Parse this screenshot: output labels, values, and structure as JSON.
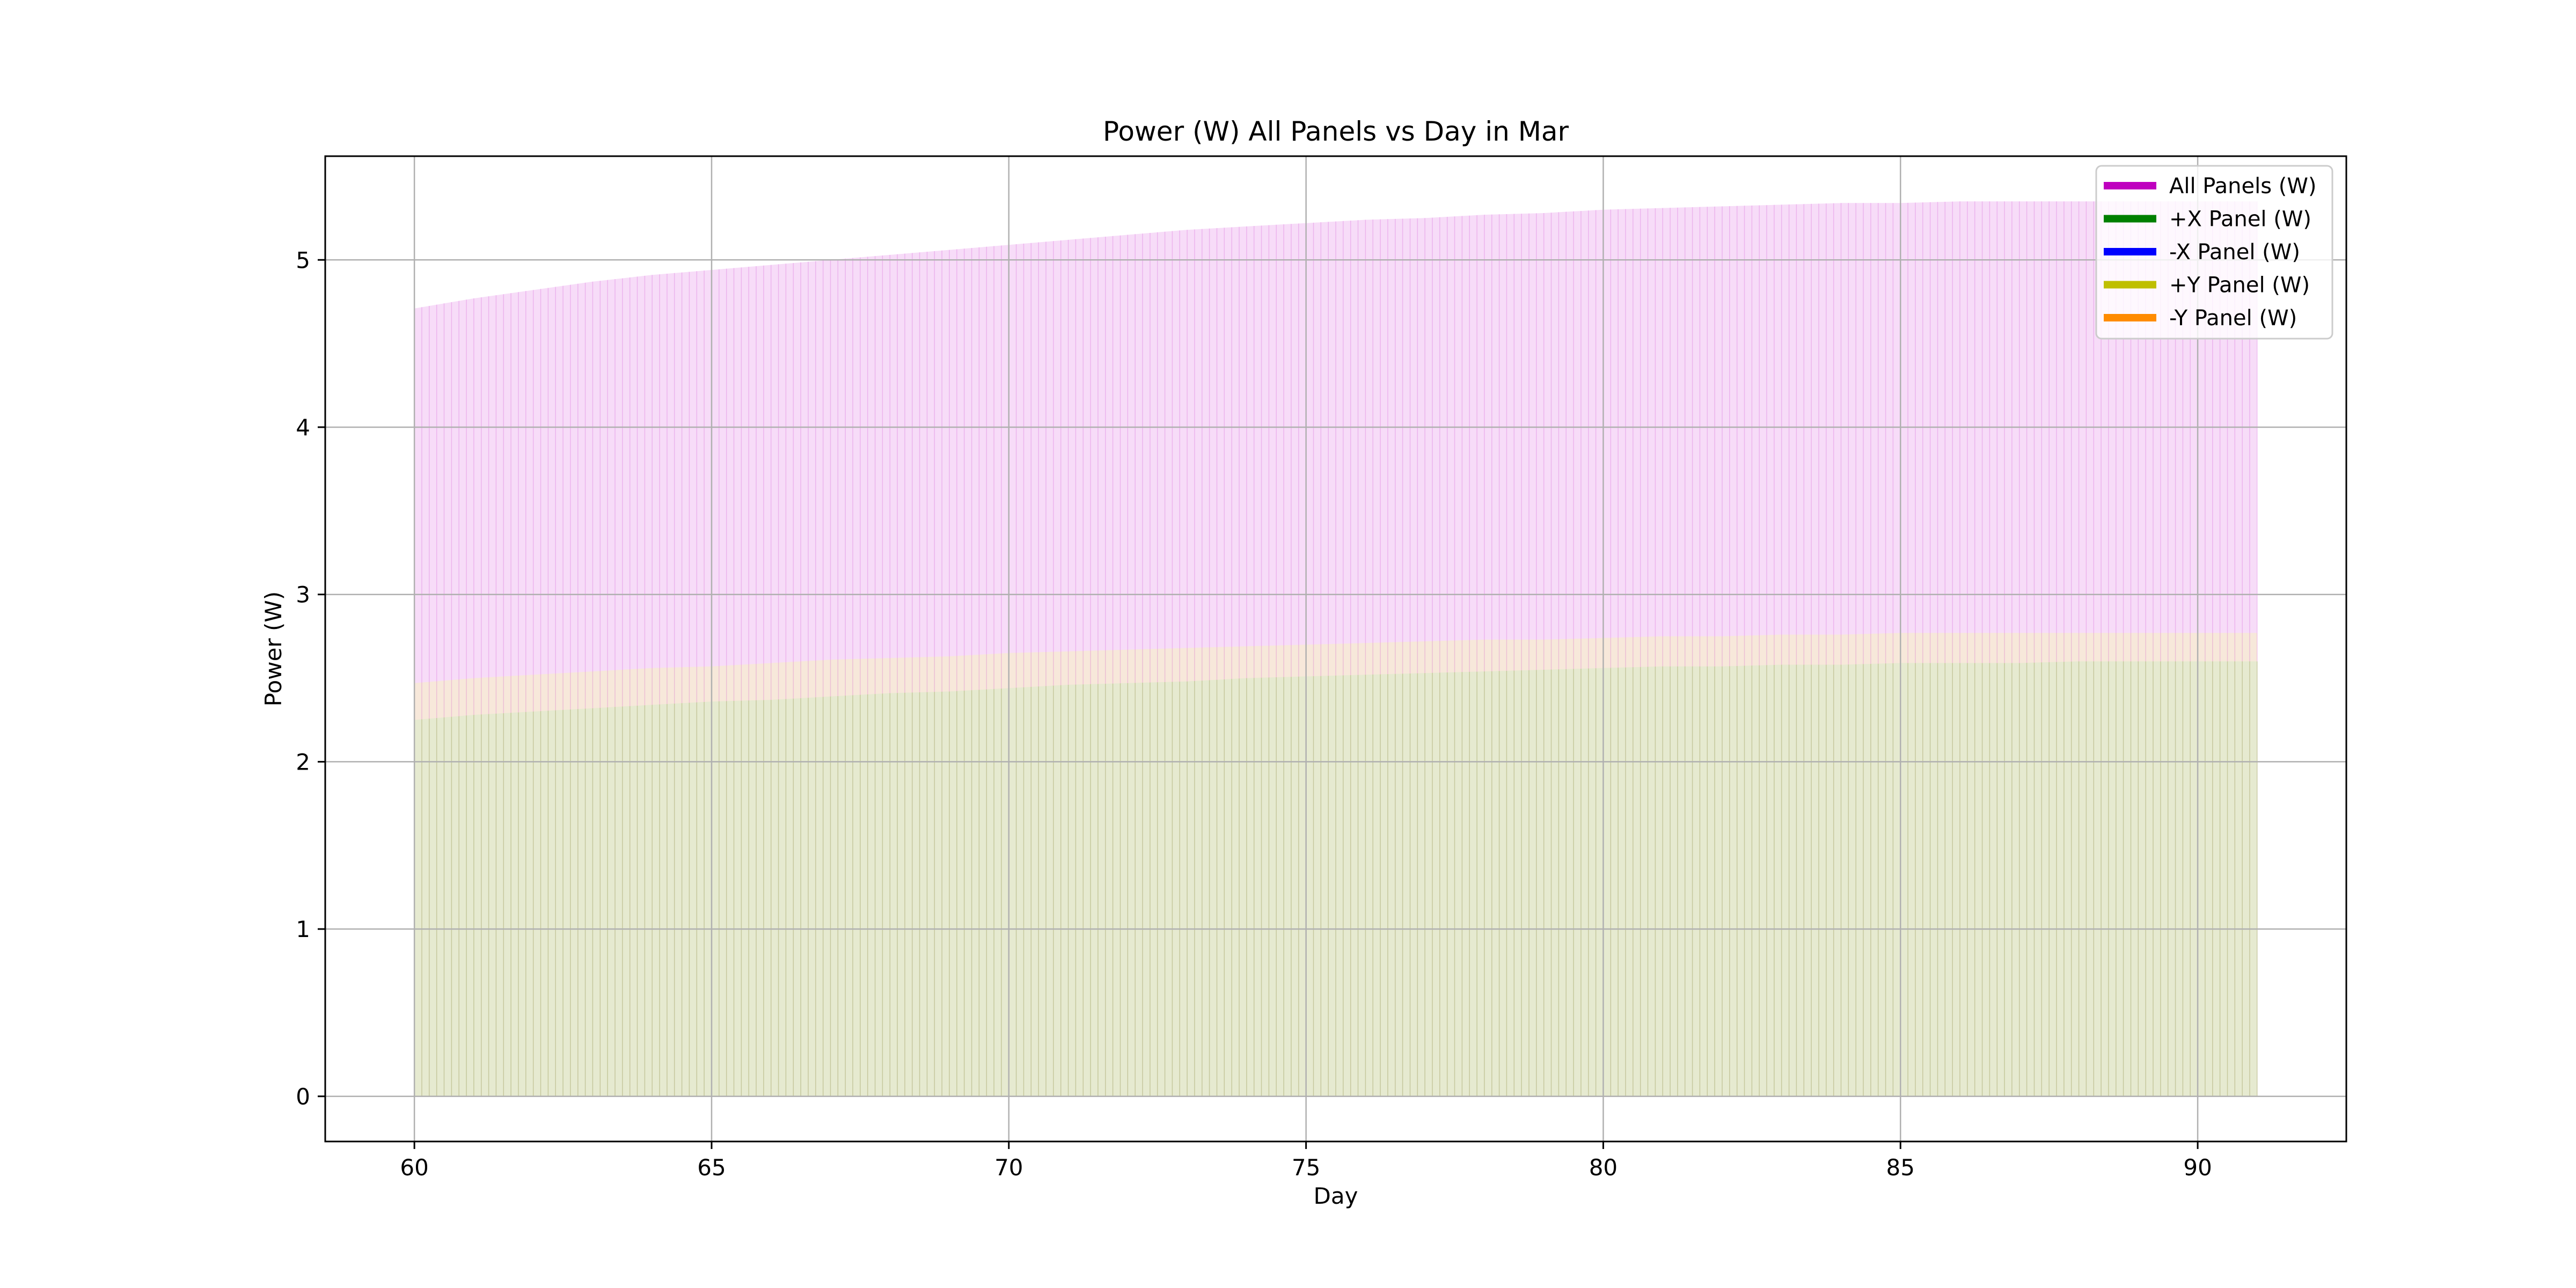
{
  "chart_data": {
    "type": "area",
    "title": "Power (W) All Panels vs Day in Mar",
    "xlabel": "Day",
    "ylabel": "Power (W)",
    "xlim": [
      58.5,
      92.5
    ],
    "ylim": [
      -0.27,
      5.62
    ],
    "xticks": [
      60,
      65,
      70,
      75,
      80,
      85,
      90
    ],
    "yticks": [
      0,
      1,
      2,
      3,
      4,
      5
    ],
    "grid": true,
    "legend_position": "top-right",
    "x": [
      60,
      61,
      62,
      63,
      64,
      65,
      66,
      67,
      68,
      69,
      70,
      71,
      72,
      73,
      74,
      75,
      76,
      77,
      78,
      79,
      80,
      81,
      82,
      83,
      84,
      85,
      86,
      87,
      88,
      89,
      90,
      91
    ],
    "series": [
      {
        "name": "All Panels (W)",
        "color": "#bf00bf",
        "fill_color": "#f7dcf8",
        "values": [
          4.71,
          4.77,
          4.82,
          4.87,
          4.91,
          4.94,
          4.97,
          5.0,
          5.03,
          5.06,
          5.09,
          5.12,
          5.15,
          5.18,
          5.2,
          5.22,
          5.24,
          5.25,
          5.27,
          5.28,
          5.3,
          5.31,
          5.32,
          5.33,
          5.34,
          5.34,
          5.35,
          5.35,
          5.35,
          5.35,
          5.35,
          5.35
        ]
      },
      {
        "name": "+X Panel (W)",
        "color": "#008000",
        "fill_color": "#e2eed8",
        "values": [
          2.25,
          2.28,
          2.3,
          2.32,
          2.34,
          2.36,
          2.37,
          2.39,
          2.41,
          2.42,
          2.44,
          2.46,
          2.47,
          2.48,
          2.5,
          2.51,
          2.52,
          2.53,
          2.54,
          2.55,
          2.56,
          2.57,
          2.57,
          2.58,
          2.58,
          2.59,
          2.59,
          2.59,
          2.6,
          2.6,
          2.6,
          2.6
        ]
      },
      {
        "name": "-X Panel (W)",
        "color": "#0000ff",
        "fill_color": "#e6e6f4",
        "values": [
          0,
          0,
          0,
          0,
          0,
          0,
          0,
          0,
          0,
          0,
          0,
          0,
          0,
          0,
          0,
          0,
          0,
          0,
          0,
          0,
          0,
          0,
          0,
          0,
          0,
          0,
          0,
          0,
          0,
          0,
          0,
          0
        ]
      },
      {
        "name": "+Y Panel (W)",
        "color": "#bfbf00",
        "fill_color": "#e8e8cc",
        "values": [
          2.25,
          2.28,
          2.3,
          2.32,
          2.34,
          2.36,
          2.37,
          2.39,
          2.41,
          2.42,
          2.44,
          2.46,
          2.47,
          2.48,
          2.5,
          2.51,
          2.52,
          2.53,
          2.54,
          2.55,
          2.56,
          2.57,
          2.57,
          2.58,
          2.58,
          2.59,
          2.59,
          2.59,
          2.6,
          2.6,
          2.6,
          2.6
        ]
      },
      {
        "name": "-Y Panel (W)",
        "color": "#ff8c00",
        "fill_color": "#f7e8da",
        "values": [
          2.47,
          2.5,
          2.52,
          2.54,
          2.56,
          2.57,
          2.59,
          2.61,
          2.62,
          2.63,
          2.65,
          2.66,
          2.67,
          2.68,
          2.69,
          2.7,
          2.71,
          2.72,
          2.73,
          2.73,
          2.74,
          2.75,
          2.75,
          2.76,
          2.76,
          2.77,
          2.77,
          2.77,
          2.77,
          2.77,
          2.77,
          2.77
        ]
      }
    ]
  }
}
